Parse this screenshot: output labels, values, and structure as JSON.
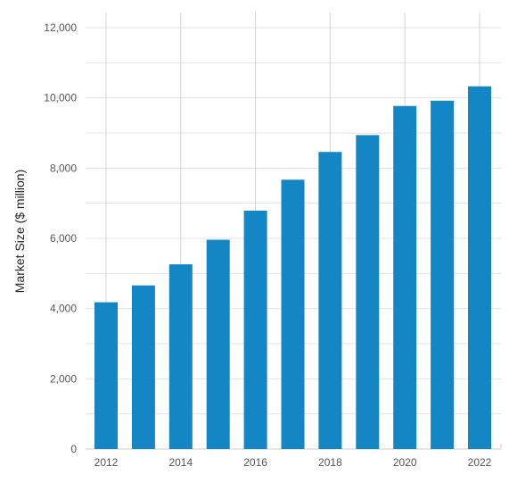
{
  "chart_data": {
    "type": "bar",
    "title": "",
    "xlabel": "",
    "ylabel": "Market Size ($ million)",
    "categories": [
      "2012",
      "2013",
      "2014",
      "2015",
      "2016",
      "2017",
      "2018",
      "2019",
      "2020",
      "2021",
      "2022"
    ],
    "values": [
      4180,
      4660,
      5260,
      5960,
      6790,
      7670,
      8460,
      8940,
      9770,
      9920,
      10330
    ],
    "x_tick_labels": [
      "2012",
      "2014",
      "2016",
      "2018",
      "2020",
      "2022"
    ],
    "y_ticks": [
      0,
      2000,
      4000,
      6000,
      8000,
      10000,
      12000
    ],
    "y_tick_labels": [
      "0",
      "2,000",
      "4,000",
      "6,000",
      "8,000",
      "10,000",
      "12,000"
    ],
    "ylim": [
      0,
      12000
    ],
    "y_minor_step": 1000,
    "grid": true,
    "legend": "none",
    "colors": {
      "bar": "#1586c4",
      "grid": "#ecdfe3",
      "vgrid": "#d3d3d3"
    }
  }
}
